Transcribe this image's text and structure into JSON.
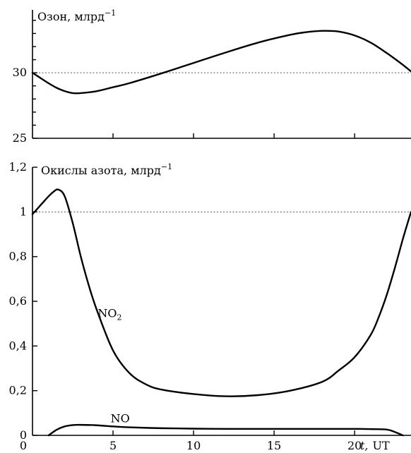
{
  "chart_data": [
    {
      "type": "line",
      "title": "Озон, млрд",
      "title_superscript": "−1",
      "ylim": [
        25,
        34.8
      ],
      "xlim": [
        0,
        23.5
      ],
      "y_ticks_labeled": [
        "25",
        "30"
      ],
      "y_tick_values_labeled": [
        25,
        30
      ],
      "y_minor_tick_values": [
        26,
        27,
        28,
        29,
        31,
        32,
        33,
        34
      ],
      "x_tick_values": [
        5,
        10,
        15,
        20
      ],
      "reference_line": 30,
      "series": [
        {
          "name": "",
          "x": [
            0,
            0.5,
            1,
            1.5,
            2,
            2.5,
            3,
            4,
            5,
            6,
            8,
            10,
            12,
            14,
            16,
            17,
            18,
            19,
            20,
            21,
            22,
            23,
            23.5
          ],
          "y": [
            30.0,
            29.6,
            29.2,
            28.85,
            28.6,
            28.45,
            28.45,
            28.6,
            28.9,
            29.2,
            29.95,
            30.75,
            31.55,
            32.3,
            32.9,
            33.1,
            33.2,
            33.15,
            32.85,
            32.3,
            31.5,
            30.6,
            30.1
          ]
        }
      ]
    },
    {
      "type": "line",
      "title": "Окислы азота, млрд",
      "title_superscript": "−1",
      "xlabel_t": "t,",
      "xlabel_unit": "UT",
      "ylim": [
        0,
        1.2
      ],
      "xlim": [
        0,
        23.5
      ],
      "y_ticks": [
        "0",
        "0,2",
        "0,4",
        "0,6",
        "0,8",
        "1",
        "1,2"
      ],
      "y_tick_values": [
        0,
        0.2,
        0.4,
        0.6,
        0.8,
        1.0,
        1.2
      ],
      "x_ticks": [
        "0",
        "5",
        "10",
        "15",
        "20"
      ],
      "x_tick_values": [
        0,
        5,
        10,
        15,
        20
      ],
      "reference_line": 1.0,
      "series": [
        {
          "name": "NO",
          "subscript": "2",
          "label_x": 4.05,
          "label_y": 0.545,
          "x": [
            0,
            0.5,
            1,
            1.3,
            1.6,
            2,
            2.5,
            3,
            3.5,
            4,
            5,
            6,
            7,
            8,
            10,
            12,
            14,
            16,
            18,
            19,
            20,
            21,
            21.5,
            22,
            22.5,
            23,
            23.5
          ],
          "y": [
            0.99,
            1.03,
            1.07,
            1.09,
            1.1,
            1.07,
            0.95,
            0.8,
            0.67,
            0.56,
            0.38,
            0.28,
            0.23,
            0.205,
            0.185,
            0.175,
            0.18,
            0.2,
            0.24,
            0.29,
            0.35,
            0.45,
            0.53,
            0.63,
            0.75,
            0.88,
            1.0
          ]
        },
        {
          "name": "NO",
          "subscript": "",
          "label_x": 4.85,
          "label_y": 0.075,
          "x": [
            1,
            1.5,
            2,
            2.5,
            3,
            4,
            5,
            6,
            8,
            10,
            12,
            14,
            16,
            18,
            20,
            21,
            22,
            22.5,
            23
          ],
          "y": [
            0.0,
            0.025,
            0.04,
            0.046,
            0.047,
            0.045,
            0.04,
            0.036,
            0.032,
            0.03,
            0.029,
            0.029,
            0.029,
            0.029,
            0.029,
            0.028,
            0.026,
            0.015,
            0.0
          ]
        }
      ]
    }
  ]
}
